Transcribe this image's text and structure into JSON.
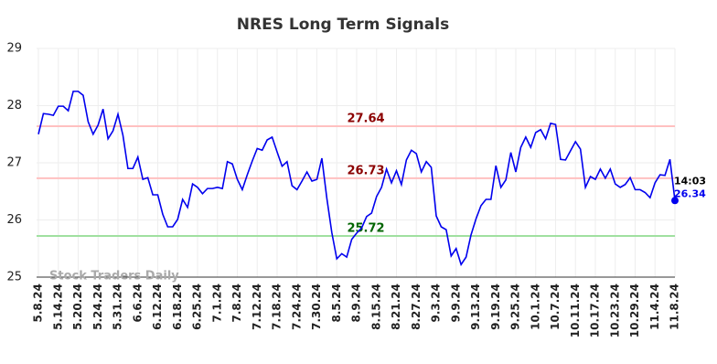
{
  "chart_data": {
    "type": "line",
    "title": "NRES Long Term Signals",
    "categories": [
      "5.8.24",
      null,
      null,
      null,
      "5.14.24",
      null,
      null,
      null,
      "5.20.24",
      null,
      null,
      null,
      "5.24.24",
      null,
      null,
      null,
      "5.31.24",
      null,
      null,
      null,
      "6.6.24",
      null,
      null,
      null,
      "6.12.24",
      null,
      null,
      null,
      "6.18.24",
      null,
      null,
      null,
      "6.25.24",
      null,
      null,
      null,
      "7.1.24",
      null,
      null,
      null,
      "7.8.24",
      null,
      null,
      null,
      "7.12.24",
      null,
      null,
      null,
      "7.18.24",
      null,
      null,
      null,
      "7.24.24",
      null,
      null,
      null,
      "7.30.24",
      null,
      null,
      null,
      "8.5.24",
      null,
      null,
      null,
      "8.9.24",
      null,
      null,
      null,
      "8.15.24",
      null,
      null,
      null,
      "8.21.24",
      null,
      null,
      null,
      "8.27.24",
      null,
      null,
      null,
      "9.3.24",
      null,
      null,
      null,
      "9.9.24",
      null,
      null,
      null,
      "9.13.24",
      null,
      null,
      null,
      "9.19.24",
      null,
      null,
      null,
      "9.25.24",
      null,
      null,
      null,
      "10.1.24",
      null,
      null,
      null,
      "10.7.24",
      null,
      null,
      null,
      "10.11.24",
      null,
      null,
      null,
      "10.17.24",
      null,
      null,
      null,
      "10.23.24",
      null,
      null,
      null,
      "10.29.24",
      null,
      null,
      null,
      "11.4.24",
      null,
      null,
      null,
      "11.8.24"
    ],
    "values": [
      27.5,
      27.86,
      27.85,
      27.83,
      27.99,
      27.99,
      27.91,
      28.25,
      28.25,
      28.18,
      27.72,
      27.5,
      27.66,
      27.94,
      27.42,
      27.56,
      27.85,
      27.48,
      26.9,
      26.9,
      27.1,
      26.71,
      26.74,
      26.44,
      26.44,
      26.1,
      25.88,
      25.88,
      26.01,
      26.36,
      26.22,
      26.63,
      26.57,
      26.46,
      26.55,
      26.55,
      26.57,
      26.55,
      27.02,
      26.98,
      26.71,
      26.53,
      26.79,
      27.03,
      27.25,
      27.22,
      27.4,
      27.45,
      27.19,
      26.94,
      27.02,
      26.6,
      26.53,
      26.68,
      26.84,
      26.68,
      26.71,
      27.08,
      26.38,
      25.78,
      25.32,
      25.41,
      25.35,
      25.66,
      25.77,
      25.86,
      26.06,
      26.12,
      26.41,
      26.57,
      26.89,
      26.65,
      26.86,
      26.62,
      27.05,
      27.22,
      27.16,
      26.84,
      27.02,
      26.92,
      26.07,
      25.88,
      25.83,
      25.37,
      25.5,
      25.22,
      25.35,
      25.74,
      26.02,
      26.25,
      26.36,
      26.36,
      26.95,
      26.57,
      26.7,
      27.18,
      26.84,
      27.27,
      27.45,
      27.27,
      27.53,
      27.58,
      27.42,
      27.69,
      27.67,
      27.06,
      27.05,
      27.21,
      27.37,
      27.24,
      26.57,
      26.76,
      26.71,
      26.89,
      26.73,
      26.89,
      26.63,
      26.57,
      26.62,
      26.74,
      26.53,
      26.53,
      26.48,
      26.39,
      26.65,
      26.79,
      26.78,
      27.06,
      26.34
    ],
    "color": "#0000ee",
    "ylim": [
      25,
      29
    ],
    "yticks": [
      25,
      26,
      27,
      28,
      29
    ],
    "grid": true,
    "reference_lines": [
      {
        "value": 27.64,
        "color": "#ffc0c0",
        "label_color": "#8b0000"
      },
      {
        "value": 26.73,
        "color": "#ffc0c0",
        "label_color": "#8b0000"
      },
      {
        "value": 25.72,
        "color": "#a0e0a0",
        "label_color": "#006400"
      }
    ],
    "last_time": "14:03",
    "watermark": "Stock Traders Daily"
  }
}
